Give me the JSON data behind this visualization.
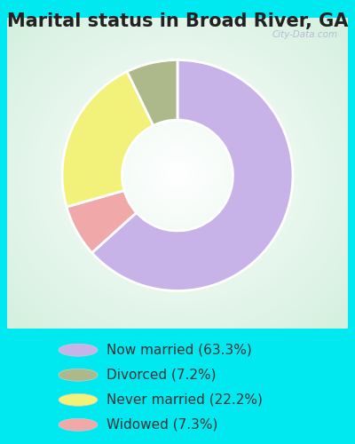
{
  "title": "Marital status in Broad River, GA",
  "slices": [
    63.3,
    7.2,
    22.2,
    7.3
  ],
  "colors": [
    "#c8b3e8",
    "#adb98a",
    "#f2f27a",
    "#f0a8a8"
  ],
  "labels": [
    "Now married (63.3%)",
    "Divorced (7.2%)",
    "Never married (22.2%)",
    "Widowed (7.3%)"
  ],
  "wedge_order_slices": [
    63.3,
    7.3,
    22.2,
    7.2
  ],
  "wedge_order_colors": [
    "#c8b3e8",
    "#f0a8a8",
    "#f2f27a",
    "#adb98a"
  ],
  "bg_cyan": "#00e8f0",
  "title_color": "#222222",
  "title_fontsize": 15,
  "legend_fontsize": 11,
  "watermark": "City-Data.com",
  "chart_bg_color": "#e8f5e8",
  "donut_width": 0.52
}
